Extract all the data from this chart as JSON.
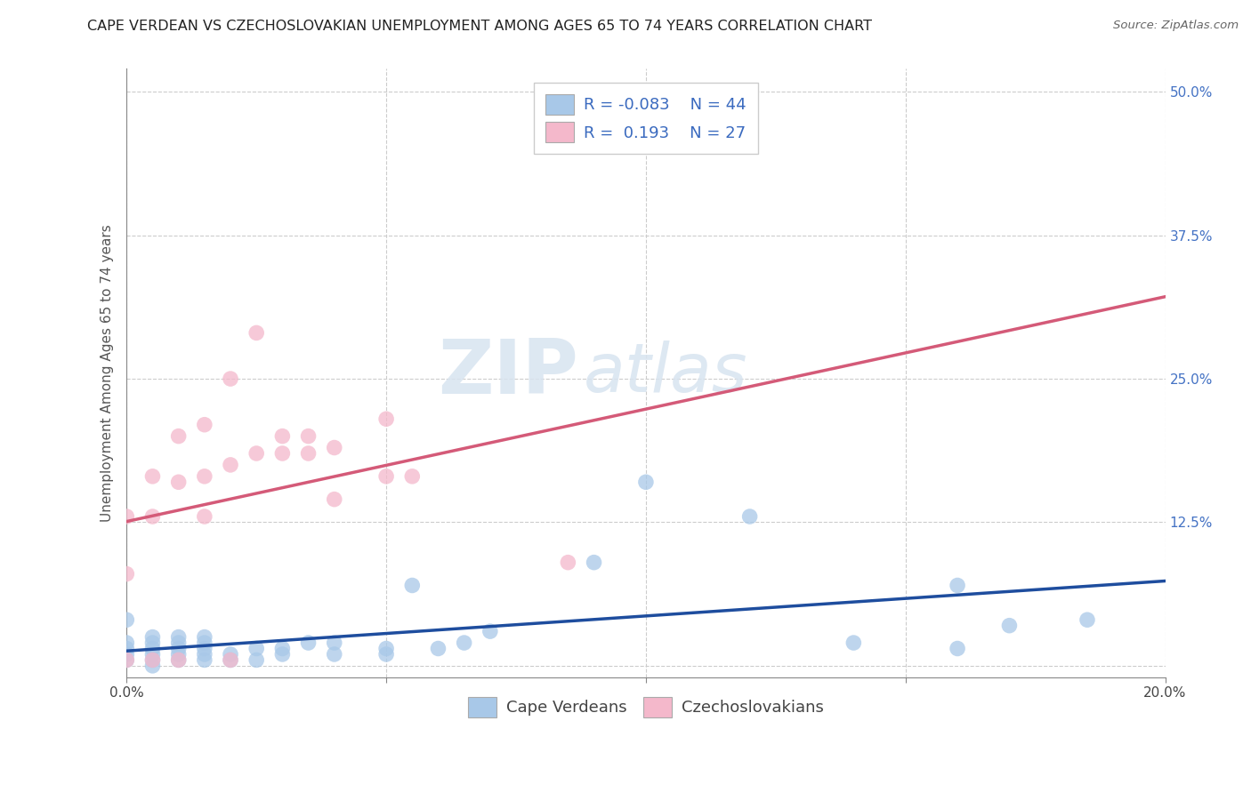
{
  "title": "CAPE VERDEAN VS CZECHOSLOVAKIAN UNEMPLOYMENT AMONG AGES 65 TO 74 YEARS CORRELATION CHART",
  "source": "Source: ZipAtlas.com",
  "ylabel": "Unemployment Among Ages 65 to 74 years",
  "xlim": [
    0.0,
    0.2
  ],
  "ylim": [
    -0.01,
    0.52
  ],
  "xticks": [
    0.0,
    0.05,
    0.1,
    0.15,
    0.2
  ],
  "xticklabels": [
    "0.0%",
    "",
    "",
    "",
    "20.0%"
  ],
  "yticks": [
    0.0,
    0.125,
    0.25,
    0.375,
    0.5
  ],
  "yticklabels": [
    "",
    "12.5%",
    "25.0%",
    "37.5%",
    "50.0%"
  ],
  "blue_R": -0.083,
  "blue_N": 44,
  "pink_R": 0.193,
  "pink_N": 27,
  "blue_color": "#a8c8e8",
  "pink_color": "#f4b8cb",
  "blue_line_color": "#1e4d9e",
  "pink_line_color": "#d45a78",
  "watermark_zip": "ZIP",
  "watermark_atlas": "atlas",
  "grid_color": "#cccccc",
  "background_color": "#ffffff",
  "title_fontsize": 11.5,
  "axis_fontsize": 11,
  "tick_fontsize": 11,
  "legend_fontsize": 13,
  "blue_points_x": [
    0.0,
    0.0,
    0.0,
    0.0,
    0.0,
    0.005,
    0.005,
    0.005,
    0.005,
    0.005,
    0.005,
    0.01,
    0.01,
    0.01,
    0.01,
    0.01,
    0.015,
    0.015,
    0.015,
    0.015,
    0.015,
    0.02,
    0.02,
    0.025,
    0.025,
    0.03,
    0.03,
    0.035,
    0.04,
    0.04,
    0.05,
    0.05,
    0.055,
    0.06,
    0.065,
    0.07,
    0.09,
    0.1,
    0.12,
    0.14,
    0.16,
    0.16,
    0.17,
    0.185
  ],
  "blue_points_y": [
    0.005,
    0.01,
    0.015,
    0.02,
    0.04,
    0.0,
    0.005,
    0.01,
    0.015,
    0.02,
    0.025,
    0.005,
    0.01,
    0.015,
    0.02,
    0.025,
    0.005,
    0.01,
    0.015,
    0.02,
    0.025,
    0.005,
    0.01,
    0.005,
    0.015,
    0.01,
    0.015,
    0.02,
    0.01,
    0.02,
    0.01,
    0.015,
    0.07,
    0.015,
    0.02,
    0.03,
    0.09,
    0.16,
    0.13,
    0.02,
    0.015,
    0.07,
    0.035,
    0.04
  ],
  "pink_points_x": [
    0.0,
    0.0,
    0.0,
    0.005,
    0.005,
    0.005,
    0.01,
    0.01,
    0.01,
    0.015,
    0.015,
    0.015,
    0.02,
    0.02,
    0.02,
    0.025,
    0.025,
    0.03,
    0.03,
    0.035,
    0.035,
    0.04,
    0.04,
    0.05,
    0.05,
    0.055,
    0.085
  ],
  "pink_points_y": [
    0.005,
    0.08,
    0.13,
    0.005,
    0.13,
    0.165,
    0.005,
    0.16,
    0.2,
    0.13,
    0.165,
    0.21,
    0.005,
    0.175,
    0.25,
    0.185,
    0.29,
    0.185,
    0.2,
    0.185,
    0.2,
    0.145,
    0.19,
    0.165,
    0.215,
    0.165,
    0.09
  ]
}
